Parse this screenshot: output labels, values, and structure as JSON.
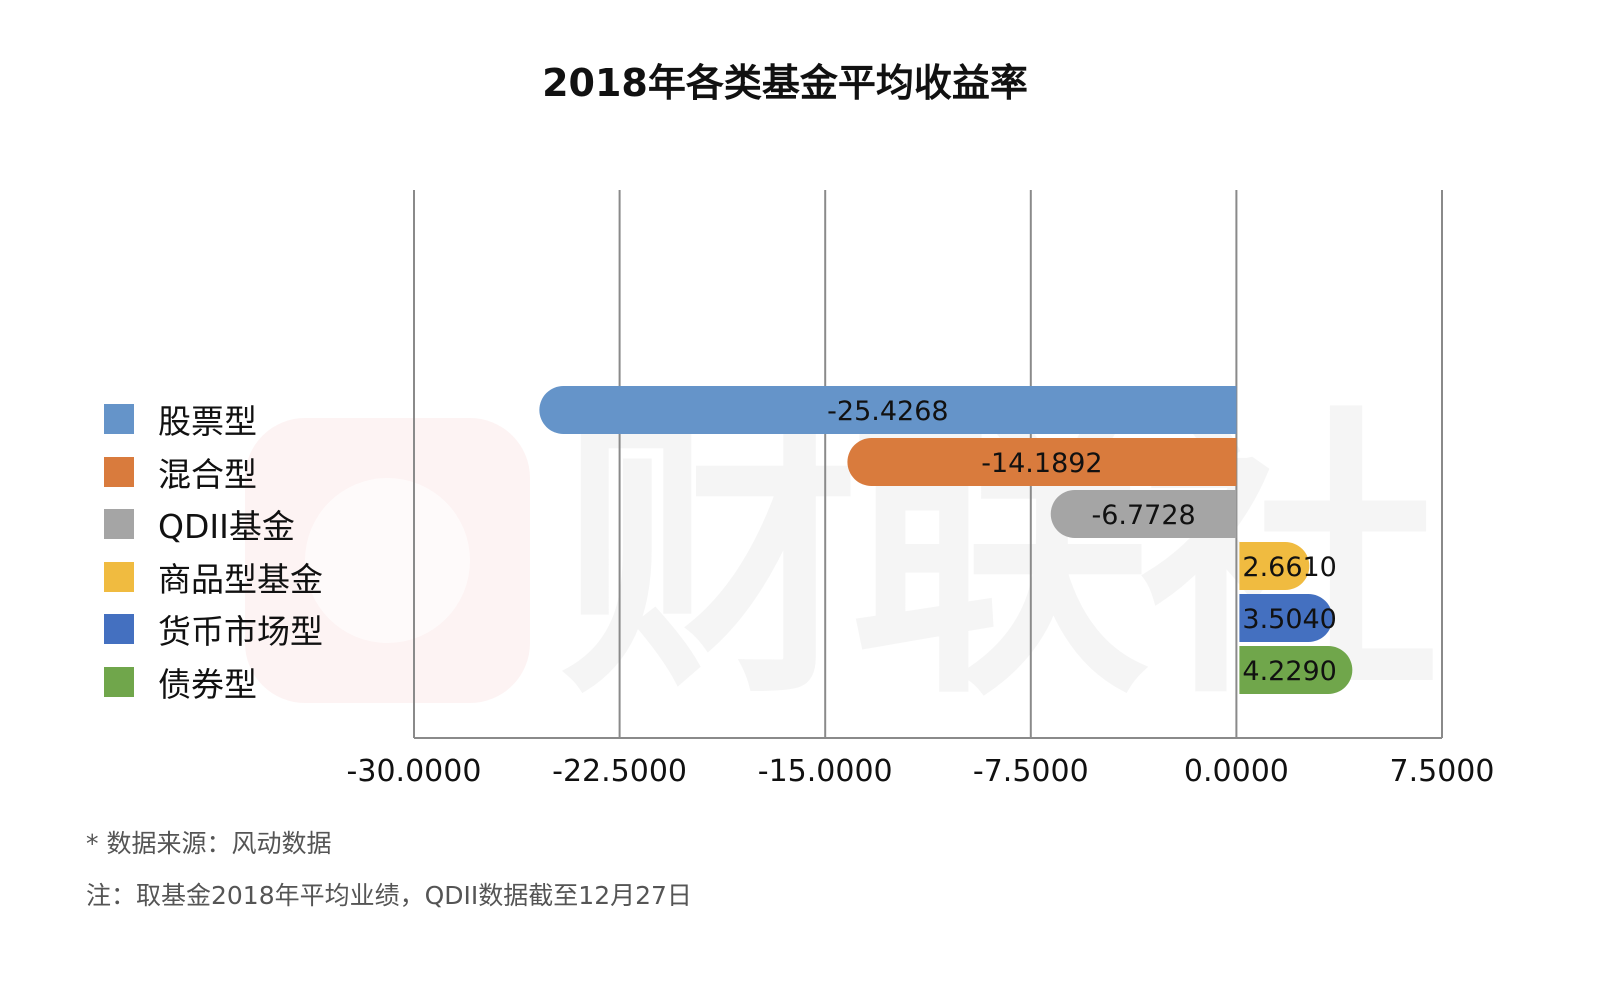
{
  "watermark": "财联社",
  "chart_data": {
    "type": "bar",
    "orientation": "horizontal",
    "title": "2018年各类基金平均收益率",
    "categories": [
      "股票型",
      "混合型",
      "QDII基金",
      "商品型基金",
      "货币市场型",
      "债券型"
    ],
    "values": [
      -25.4268,
      -14.1892,
      -6.7728,
      2.661,
      3.504,
      4.229
    ],
    "value_labels": [
      "-25.4268",
      "-14.1892",
      "-6.7728",
      "2.6610",
      "3.5040",
      "4.2290"
    ],
    "colors": [
      "#6594c9",
      "#d97b3d",
      "#a5a5a5",
      "#f0bb40",
      "#4470c0",
      "#70a64b"
    ],
    "xlim": [
      -30,
      7.5
    ],
    "xticks": [
      -30,
      -22.5,
      -15,
      -7.5,
      0,
      7.5
    ],
    "xtick_labels": [
      "-30.0000",
      "-22.5000",
      "-15.0000",
      "-7.5000",
      "0.0000",
      "7.5000"
    ],
    "grid": true,
    "legend_position": "left"
  },
  "notes": {
    "source": "* 数据来源：风动数据",
    "remark": "注：取基金2018年平均业绩，QDII数据截至12月27日"
  }
}
